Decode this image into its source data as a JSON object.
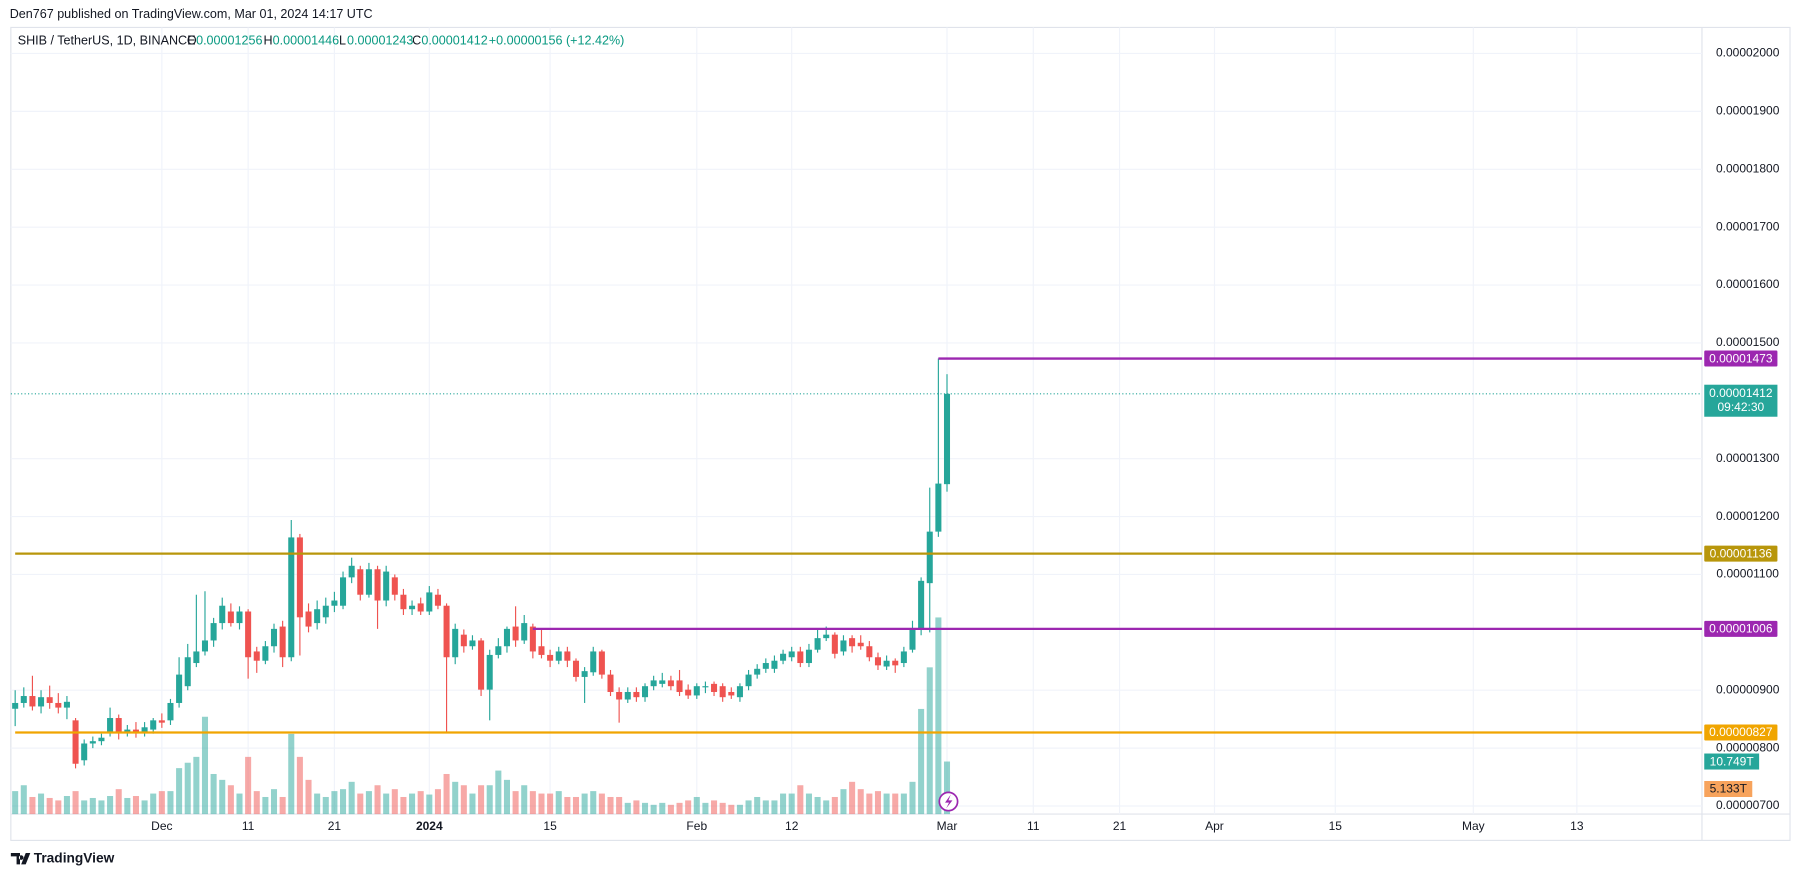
{
  "header": "Den767 published on TradingView.com, Mar 01, 2024 14:17 UTC",
  "footer": "TradingView",
  "chart_data": {
    "type": "candlestick",
    "symbol": "SHIB / TetherUS, 1D, BINANCE",
    "ohlc_letters": [
      "O",
      "H",
      "L",
      "C"
    ],
    "change": "+0.00000156 (+12.42%)",
    "countdown": "09:42:30",
    "up_color": "#26a69a",
    "down_color": "#ef5350",
    "grid": true,
    "ylim": [
      6.86e-06,
      2.045e-05
    ],
    "yticks": [
      {
        "value": 7e-06,
        "label": "0.00000700"
      },
      {
        "value": 8e-06,
        "label": "0.00000800"
      },
      {
        "value": 9e-06,
        "label": "0.00000900"
      },
      {
        "value": 1.1e-05,
        "label": "0.00001100"
      },
      {
        "value": 1.2e-05,
        "label": "0.00001200"
      },
      {
        "value": 1.3e-05,
        "label": "0.00001300"
      },
      {
        "value": 1.5e-05,
        "label": "0.00001500"
      },
      {
        "value": 1.6e-05,
        "label": "0.00001600"
      },
      {
        "value": 1.7e-05,
        "label": "0.00001700"
      },
      {
        "value": 1.8e-05,
        "label": "0.00001800"
      },
      {
        "value": 1.9e-05,
        "label": "0.00001900"
      },
      {
        "value": 2e-05,
        "label": "0.00002000"
      }
    ],
    "categories": [
      null,
      null,
      null,
      null,
      null,
      null,
      null,
      null,
      null,
      null,
      null,
      null,
      null,
      null,
      null,
      null,
      null,
      "Dec",
      null,
      null,
      null,
      null,
      null,
      null,
      null,
      null,
      null,
      "11",
      null,
      null,
      null,
      null,
      null,
      null,
      null,
      null,
      null,
      "21",
      null,
      null,
      null,
      null,
      null,
      null,
      null,
      null,
      null,
      null,
      "2024",
      null,
      null,
      null,
      null,
      null,
      null,
      null,
      null,
      null,
      null,
      null,
      null,
      null,
      "15",
      null,
      null,
      null,
      null,
      null,
      null,
      null,
      null,
      null,
      null,
      null,
      null,
      null,
      null,
      null,
      null,
      "Feb",
      null,
      null,
      null,
      null,
      null,
      null,
      null,
      null,
      null,
      null,
      "12",
      null,
      null,
      null,
      null,
      null,
      null,
      null,
      null,
      null,
      null,
      null,
      null,
      null,
      null,
      null,
      null,
      null,
      "Mar",
      null,
      null,
      null,
      null,
      null,
      null,
      null,
      null,
      null,
      "11",
      null,
      null,
      null,
      null,
      null,
      null,
      null,
      null,
      null,
      "21",
      null,
      null,
      null,
      null,
      null,
      null,
      null,
      null,
      null,
      null,
      "Apr",
      null,
      null,
      null,
      null,
      null,
      null,
      null,
      null,
      null,
      null,
      null,
      null,
      null,
      "15",
      null,
      null,
      null,
      null,
      null,
      null,
      null,
      null,
      null,
      null,
      null,
      null,
      null,
      null,
      null,
      "May",
      null,
      null,
      null,
      null,
      null,
      null,
      null,
      null,
      null,
      null,
      null,
      "13",
      null,
      null,
      null,
      null,
      null,
      null,
      null,
      null,
      null,
      null,
      null,
      null,
      null,
      null
    ],
    "open": [
      8.68e-06,
      8.78e-06,
      8.9e-06,
      8.72e-06,
      8.88e-06,
      8.78e-06,
      8.7e-06,
      8.48e-06,
      7.79e-06,
      8.08e-06,
      8.12e-06,
      8.28e-06,
      8.52e-06,
      8.28e-06,
      8.32e-06,
      8.28e-06,
      8.32e-06,
      8.48e-06,
      8.48e-06,
      8.78e-06,
      9.07e-06,
      9.47e-06,
      9.67e-06,
      9.86e-06,
      1.016e-05,
      1.036e-05,
      1.016e-05,
      1.036e-05,
      9.67e-06,
      9.51e-06,
      9.76e-06,
      1.01e-05,
      9.57e-06,
      1.164e-05,
      1.036e-05,
      1.016e-05,
      1.026e-05,
      1.046e-05,
      1.046e-05,
      1.095e-05,
      1.109e-05,
      1.065e-05,
      1.109e-05,
      1.055e-05,
      1.095e-05,
      1.065e-05,
      1.04e-05,
      1.05e-05,
      1.036e-05,
      1.065e-05,
      1.046e-05,
      9.57e-06,
      9.96e-06,
      9.76e-06,
      9.86e-06,
      9.01e-06,
      9.61e-06,
      9.76e-06,
      1.01e-05,
      9.86e-06,
      1.01e-05,
      9.76e-06,
      9.61e-06,
      9.51e-06,
      9.67e-06,
      9.51e-06,
      9.23e-06,
      9.31e-06,
      9.67e-06,
      9.27e-06,
      8.97e-06,
      8.84e-06,
      8.97e-06,
      8.88e-06,
      9.07e-06,
      9.11e-06,
      9.17e-06,
      9.17e-06,
      9.01e-06,
      8.91e-06,
      9.05e-06,
      9.11e-06,
      9.07e-06,
      8.97e-06,
      8.88e-06,
      9.07e-06,
      9.27e-06,
      9.37e-06,
      9.37e-06,
      9.51e-06,
      9.57e-06,
      9.67e-06,
      9.47e-06,
      9.7e-06,
      9.9e-06,
      9.96e-06,
      9.67e-06,
      9.9e-06,
      9.82e-06,
      9.76e-06,
      9.57e-06,
      9.41e-06,
      9.51e-06,
      9.47e-06,
      9.7e-06,
      1.006e-05,
      1.085e-05,
      1.174e-05,
      1.256e-05,
      null,
      null,
      null,
      null,
      null,
      null,
      null,
      null,
      null,
      null,
      null,
      null,
      null,
      null,
      null,
      null,
      null,
      null,
      null,
      null,
      null,
      null,
      null,
      null,
      null,
      null,
      null,
      null,
      null,
      null,
      null,
      null,
      null,
      null,
      null,
      null,
      null,
      null,
      null,
      null,
      null,
      null,
      null,
      null,
      null,
      null,
      null,
      null,
      null,
      null,
      null,
      null,
      null,
      null,
      null,
      null,
      null,
      null,
      null,
      null,
      null,
      null,
      null,
      null,
      null,
      null,
      null,
      null,
      null,
      null,
      null,
      null,
      null,
      null,
      null,
      null,
      null,
      null,
      null,
      null,
      null,
      null,
      null,
      null,
      null,
      null,
      null
    ],
    "high": [
      9e-06,
      9.05e-06,
      9.25e-06,
      9e-06,
      9.08e-06,
      8.95e-06,
      8.9e-06,
      8.52e-06,
      8.15e-06,
      8.2e-06,
      8.25e-06,
      8.7e-06,
      8.58e-06,
      8.4e-06,
      8.45e-06,
      8.45e-06,
      8.52e-06,
      8.6e-06,
      8.85e-06,
      9.57e-06,
      9.8e-06,
      1.065e-05,
      1.071e-05,
      1.025e-05,
      1.06e-05,
      1.05e-05,
      1.045e-05,
      1.04e-05,
      9.75e-06,
      9.85e-06,
      1.015e-05,
      1.02e-05,
      1.194e-05,
      1.17e-05,
      1.05e-05,
      1.055e-05,
      1.06e-05,
      1.07e-05,
      1.105e-05,
      1.129e-05,
      1.115e-05,
      1.12e-05,
      1.115e-05,
      1.115e-05,
      1.1e-05,
      1.075e-05,
      1.055e-05,
      1.06e-05,
      1.08e-05,
      1.075e-05,
      1.05e-05,
      1.015e-05,
      1.005e-05,
      9.95e-06,
      9.9e-06,
      9.7e-06,
      9.9e-06,
      1.01e-05,
      1.045e-05,
      1.03e-05,
      1.015e-05,
      1.006e-05,
      9.7e-06,
      9.75e-06,
      9.75e-06,
      9.55e-06,
      9.4e-06,
      9.75e-06,
      9.7e-06,
      9.35e-06,
      9.05e-06,
      9.05e-06,
      9.05e-06,
      9.12e-06,
      9.25e-06,
      9.3e-06,
      9.25e-06,
      9.35e-06,
      9.1e-06,
      9.12e-06,
      9.15e-06,
      9.15e-06,
      9.12e-06,
      9.05e-06,
      9.12e-06,
      9.35e-06,
      9.45e-06,
      9.55e-06,
      9.6e-06,
      9.7e-06,
      9.75e-06,
      9.75e-06,
      9.8e-06,
      1.006e-05,
      1.01e-05,
      1e-05,
      9.95e-06,
      9.95e-06,
      9.95e-06,
      9.85e-06,
      9.65e-06,
      9.6e-06,
      9.55e-06,
      9.75e-06,
      1.02e-05,
      1.095e-05,
      1.25e-05,
      1.473e-05,
      1.446e-05,
      null,
      null,
      null,
      null,
      null,
      null,
      null,
      null,
      null,
      null,
      null,
      null,
      null,
      null,
      null,
      null,
      null,
      null,
      null,
      null,
      null,
      null,
      null,
      null,
      null,
      null,
      null,
      null,
      null,
      null,
      null,
      null,
      null,
      null,
      null,
      null,
      null,
      null,
      null,
      null,
      null,
      null,
      null,
      null,
      null,
      null,
      null,
      null,
      null,
      null,
      null,
      null,
      null,
      null,
      null,
      null,
      null,
      null,
      null,
      null,
      null,
      null,
      null,
      null,
      null,
      null,
      null,
      null,
      null,
      null,
      null,
      null,
      null,
      null,
      null,
      null,
      null,
      null,
      null,
      null,
      null,
      null,
      null,
      null,
      null,
      null,
      null
    ],
    "low": [
      8.38e-06,
      8.7e-06,
      8.65e-06,
      8.6e-06,
      8.68e-06,
      8.6e-06,
      8.5e-06,
      7.65e-06,
      7.7e-06,
      8e-06,
      8.05e-06,
      8.2e-06,
      8.15e-06,
      8.2e-06,
      8.18e-06,
      8.2e-06,
      8.25e-06,
      8.35e-06,
      8.4e-06,
      8.7e-06,
      9e-06,
      9.4e-06,
      9.6e-06,
      9.75e-06,
      1.005e-05,
      1.01e-05,
      1.005e-05,
      9.2e-06,
      9.3e-06,
      9.45e-06,
      9.65e-06,
      9.4e-06,
      9.5e-06,
      9.6e-06,
      1e-05,
      1.005e-05,
      1.015e-05,
      1.035e-05,
      1.04e-05,
      1.085e-05,
      1.055e-05,
      1.06e-05,
      1.006e-05,
      1.045e-05,
      1.055e-05,
      1.03e-05,
      1.03e-05,
      1.03e-05,
      1.03e-05,
      1.04e-05,
      8.28e-06,
      9.45e-06,
      9.65e-06,
      9.7e-06,
      8.9e-06,
      8.48e-06,
      9.55e-06,
      9.65e-06,
      9.75e-06,
      9.8e-06,
      9.55e-06,
      9.55e-06,
      9.4e-06,
      9.45e-06,
      9.4e-06,
      9.15e-06,
      8.78e-06,
      9.25e-06,
      9.2e-06,
      8.9e-06,
      8.44e-06,
      8.78e-06,
      8.8e-06,
      8.8e-06,
      9e-06,
      9.05e-06,
      9e-06,
      8.9e-06,
      8.85e-06,
      8.85e-06,
      8.95e-06,
      8.9e-06,
      8.8e-06,
      8.85e-06,
      8.8e-06,
      9e-06,
      9.2e-06,
      9.3e-06,
      9.3e-06,
      9.45e-06,
      9.5e-06,
      9.4e-06,
      9.4e-06,
      9.65e-06,
      9.85e-06,
      9.55e-06,
      9.6e-06,
      9.65e-06,
      9.7e-06,
      9.5e-06,
      9.35e-06,
      9.35e-06,
      9.3e-06,
      9.4e-06,
      9.65e-06,
      9.95e-06,
      1e-05,
      1.165e-05,
      1.243e-05,
      null,
      null,
      null,
      null,
      null,
      null,
      null,
      null,
      null,
      null,
      null,
      null,
      null,
      null,
      null,
      null,
      null,
      null,
      null,
      null,
      null,
      null,
      null,
      null,
      null,
      null,
      null,
      null,
      null,
      null,
      null,
      null,
      null,
      null,
      null,
      null,
      null,
      null,
      null,
      null,
      null,
      null,
      null,
      null,
      null,
      null,
      null,
      null,
      null,
      null,
      null,
      null,
      null,
      null,
      null,
      null,
      null,
      null,
      null,
      null,
      null,
      null,
      null,
      null,
      null,
      null,
      null,
      null,
      null,
      null,
      null,
      null,
      null,
      null,
      null,
      null,
      null,
      null,
      null,
      null,
      null,
      null,
      null,
      null,
      null,
      null,
      null
    ],
    "close": [
      8.78e-06,
      8.9e-06,
      8.72e-06,
      8.88e-06,
      8.78e-06,
      8.7e-06,
      8.8e-06,
      7.73e-06,
      8.08e-06,
      8.12e-06,
      8.18e-06,
      8.52e-06,
      8.28e-06,
      8.32e-06,
      8.28e-06,
      8.36e-06,
      8.48e-06,
      8.44e-06,
      8.78e-06,
      9.27e-06,
      9.57e-06,
      9.67e-06,
      9.86e-06,
      1.016e-05,
      1.046e-05,
      1.016e-05,
      1.036e-05,
      9.57e-06,
      9.51e-06,
      9.76e-06,
      1.006e-05,
      9.57e-06,
      1.164e-05,
      1.026e-05,
      1.01e-05,
      1.04e-05,
      1.046e-05,
      1.055e-05,
      1.095e-05,
      1.115e-05,
      1.065e-05,
      1.109e-05,
      1.055e-05,
      1.105e-05,
      1.065e-05,
      1.04e-05,
      1.046e-05,
      1.036e-05,
      1.069e-05,
      1.046e-05,
      9.57e-06,
      1.006e-05,
      9.76e-06,
      9.86e-06,
      9.01e-06,
      9.61e-06,
      9.76e-06,
      1.006e-05,
      9.86e-06,
      1.016e-05,
      9.67e-06,
      9.61e-06,
      9.51e-06,
      9.67e-06,
      9.51e-06,
      9.23e-06,
      9.33e-06,
      9.67e-06,
      9.27e-06,
      8.97e-06,
      8.84e-06,
      8.97e-06,
      8.88e-06,
      9.07e-06,
      9.17e-06,
      9.17e-06,
      9.07e-06,
      8.97e-06,
      8.91e-06,
      9.07e-06,
      9.07e-06,
      8.97e-06,
      8.88e-06,
      8.91e-06,
      9.07e-06,
      9.27e-06,
      9.37e-06,
      9.47e-06,
      9.51e-06,
      9.63e-06,
      9.67e-06,
      9.47e-06,
      9.7e-06,
      9.9e-06,
      9.96e-06,
      9.63e-06,
      9.86e-06,
      9.76e-06,
      9.76e-06,
      9.57e-06,
      9.43e-06,
      9.51e-06,
      9.43e-06,
      9.67e-06,
      1.006e-05,
      1.089e-05,
      1.174e-05,
      1.257e-05,
      1.412e-05,
      null,
      null,
      null,
      null,
      null,
      null,
      null,
      null,
      null,
      null,
      null,
      null,
      null,
      null,
      null,
      null,
      null,
      null,
      null,
      null,
      null,
      null,
      null,
      null,
      null,
      null,
      null,
      null,
      null,
      null,
      null,
      null,
      null,
      null,
      null,
      null,
      null,
      null,
      null,
      null,
      null,
      null,
      null,
      null,
      null,
      null,
      null,
      null,
      null,
      null,
      null,
      null,
      null,
      null,
      null,
      null,
      null,
      null,
      null,
      null,
      null,
      null,
      null,
      null,
      null,
      null,
      null,
      null,
      null,
      null,
      null,
      null,
      null,
      null,
      null,
      null,
      null,
      null,
      null,
      null,
      null,
      null,
      null,
      null,
      null,
      null,
      null
    ],
    "volume": [
      4.7,
      5.9,
      3.5,
      4.2,
      3.3,
      2.8,
      3.7,
      4.7,
      2.8,
      3.3,
      2.8,
      3.7,
      5.1,
      3.3,
      3.7,
      2.8,
      4.2,
      4.7,
      4.7,
      9.4,
      10.5,
      11.7,
      19.9,
      8.2,
      7,
      5.9,
      4.2,
      11.7,
      4.7,
      3.5,
      5.1,
      3.5,
      16.4,
      11.7,
      7,
      4.2,
      3.5,
      4.7,
      5.1,
      6.6,
      4.2,
      4.7,
      5.9,
      4.2,
      5.1,
      3.5,
      4.2,
      4.7,
      4,
      5.1,
      8.2,
      6.6,
      5.9,
      4.2,
      5.9,
      5.9,
      8.9,
      7,
      4.7,
      5.9,
      4.7,
      4.2,
      4.2,
      4.7,
      3.5,
      3.5,
      4.2,
      4.7,
      4.2,
      3.5,
      3.5,
      2.3,
      2.8,
      2.3,
      1.9,
      2.3,
      1.9,
      2.3,
      2.8,
      3.5,
      2.3,
      2.8,
      2.3,
      1.9,
      1.9,
      2.8,
      3.5,
      2.8,
      2.8,
      4.2,
      4.2,
      5.9,
      4.2,
      3.5,
      2.8,
      3.5,
      5.1,
      6.6,
      5.1,
      4.2,
      4.7,
      4.2,
      4.2,
      4.2,
      6.6,
      21.5,
      30,
      40.2,
      10.749,
      null,
      null,
      null,
      null,
      null,
      null,
      null,
      null,
      null,
      null,
      null,
      null,
      null,
      null,
      null,
      null,
      null,
      null,
      null,
      null,
      null,
      null,
      null,
      null,
      null,
      null,
      null,
      null,
      null,
      null,
      null,
      null,
      null,
      null,
      null,
      null,
      null,
      null,
      null,
      null,
      null,
      null,
      null,
      null,
      null,
      null,
      null,
      null,
      null,
      null,
      null,
      null,
      null,
      null,
      null,
      null,
      null,
      null,
      null,
      null,
      null,
      null,
      null,
      null,
      null,
      null,
      null,
      null,
      null,
      null,
      null,
      null,
      null,
      null,
      null,
      null,
      null,
      null,
      null,
      null,
      null,
      null,
      null,
      null,
      null,
      null,
      null
    ],
    "last_volume_label": "10.749T",
    "volume_ma": {
      "value": 5.133,
      "label": "5.133T",
      "color": "#f7a35c"
    },
    "hlines": [
      {
        "value": 1.473e-05,
        "color": "#9c27b0",
        "start": 107
      },
      {
        "value": 1.136e-05,
        "color": "#b8960b",
        "start": 0
      },
      {
        "value": 1.006e-05,
        "color": "#9c27b0",
        "start": 60
      },
      {
        "value": 8.27e-06,
        "color": "#f0a500",
        "start": 0
      }
    ]
  }
}
